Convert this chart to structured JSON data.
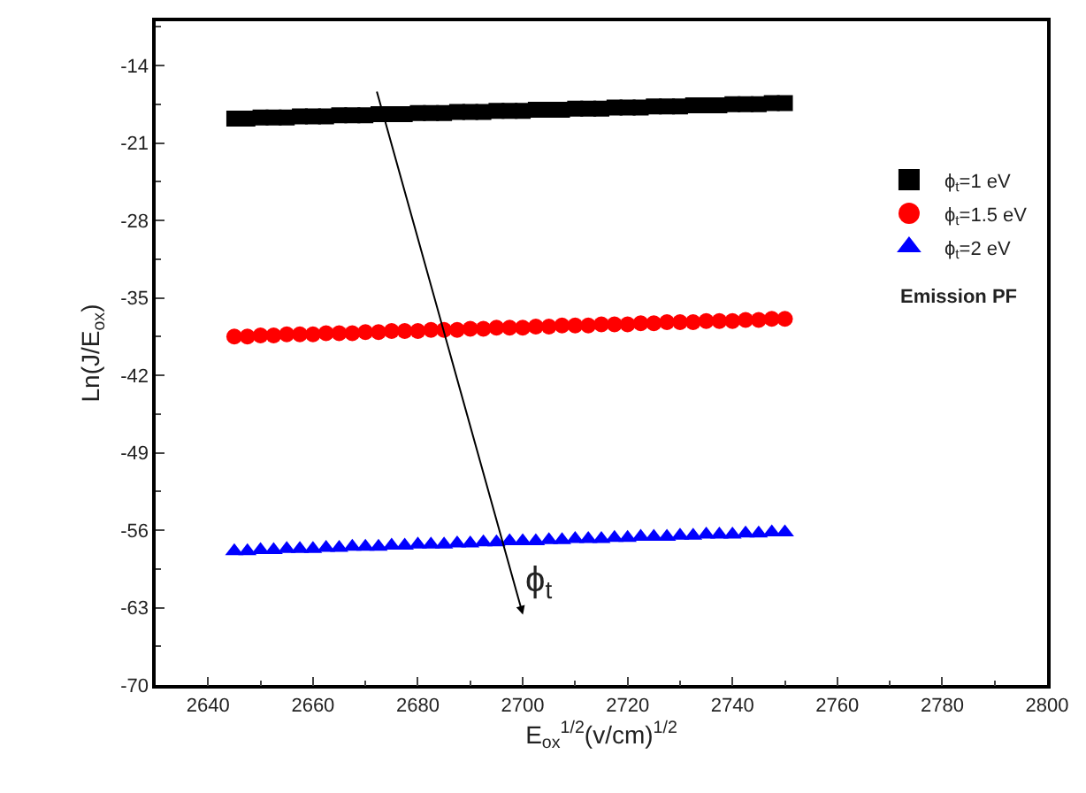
{
  "chart_data": {
    "type": "scatter",
    "xlabel": "E$_{ox}$$^{1/2}$(v/cm)$^{1/2}$",
    "ylabel": "Ln(J/E$_{ox}$)",
    "x": [
      2645,
      2647.5,
      2650,
      2652.5,
      2655,
      2657.5,
      2660,
      2662.5,
      2665,
      2667.5,
      2670,
      2672.5,
      2675,
      2677.5,
      2680,
      2682.5,
      2685,
      2687.5,
      2690,
      2692.5,
      2695,
      2697.5,
      2700,
      2702.5,
      2705,
      2707.5,
      2710,
      2712.5,
      2715,
      2717.5,
      2720,
      2722.5,
      2725,
      2727.5,
      2730,
      2732.5,
      2735,
      2737.5,
      2740,
      2742.5,
      2745,
      2747.5,
      2750
    ],
    "series": [
      {
        "name": "ϕ$_{t}$=1 eV",
        "color": "#000000",
        "marker": "square",
        "values": [
          -18.8,
          -18.8,
          -18.7,
          -18.7,
          -18.7,
          -18.6,
          -18.6,
          -18.6,
          -18.5,
          -18.5,
          -18.5,
          -18.4,
          -18.4,
          -18.4,
          -18.3,
          -18.3,
          -18.3,
          -18.2,
          -18.2,
          -18.2,
          -18.1,
          -18.1,
          -18.1,
          -18.0,
          -18.0,
          -18.0,
          -17.9,
          -17.9,
          -17.9,
          -17.8,
          -17.8,
          -17.8,
          -17.7,
          -17.7,
          -17.7,
          -17.6,
          -17.6,
          -17.6,
          -17.5,
          -17.5,
          -17.5,
          -17.4,
          -17.4
        ]
      },
      {
        "name": "ϕ$_{t}$=1.5 eV",
        "color": "#ff0000",
        "marker": "circle",
        "values": [
          -38.5,
          -38.5,
          -38.4,
          -38.4,
          -38.3,
          -38.3,
          -38.3,
          -38.2,
          -38.2,
          -38.2,
          -38.1,
          -38.1,
          -38.0,
          -38.0,
          -38.0,
          -37.9,
          -37.9,
          -37.9,
          -37.8,
          -37.8,
          -37.7,
          -37.7,
          -37.7,
          -37.6,
          -37.6,
          -37.5,
          -37.5,
          -37.5,
          -37.4,
          -37.4,
          -37.4,
          -37.3,
          -37.3,
          -37.2,
          -37.2,
          -37.2,
          -37.1,
          -37.1,
          -37.1,
          -37.0,
          -37.0,
          -36.9,
          -36.9
        ]
      },
      {
        "name": "ϕ$_{t}$=2 eV",
        "color": "#0000ff",
        "marker": "triangle",
        "values": [
          -57.9,
          -57.9,
          -57.8,
          -57.8,
          -57.7,
          -57.7,
          -57.7,
          -57.6,
          -57.6,
          -57.5,
          -57.5,
          -57.5,
          -57.4,
          -57.4,
          -57.3,
          -57.3,
          -57.3,
          -57.2,
          -57.2,
          -57.1,
          -57.1,
          -57.0,
          -57.0,
          -57.0,
          -56.9,
          -56.9,
          -56.8,
          -56.8,
          -56.8,
          -56.7,
          -56.7,
          -56.6,
          -56.6,
          -56.6,
          -56.5,
          -56.5,
          -56.4,
          -56.4,
          -56.4,
          -56.3,
          -56.3,
          -56.2,
          -56.2
        ]
      }
    ],
    "xlim": [
      2630,
      2800
    ],
    "xticks": [
      2640,
      2660,
      2680,
      2700,
      2720,
      2740,
      2760,
      2780,
      2800
    ],
    "ylim": [
      -70,
      -10
    ],
    "yticks": [
      -14,
      -21,
      -28,
      -35,
      -42,
      -49,
      -56,
      -63,
      -70
    ],
    "legend": "top right",
    "annotations": [
      "Emission PF",
      "ϕ$_{t}$"
    ]
  }
}
